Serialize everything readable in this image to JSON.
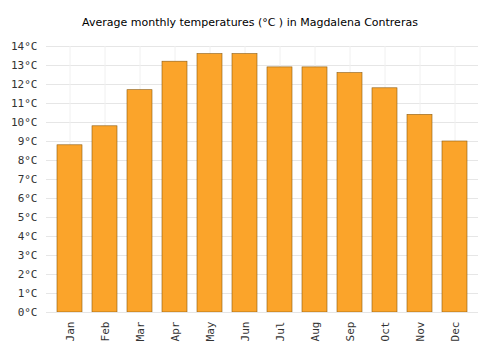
{
  "chart_data": {
    "type": "bar",
    "title": "Average monthly temperatures (°C ) in Magdalena Contreras",
    "categories": [
      "Jan",
      "Feb",
      "Mar",
      "Apr",
      "May",
      "Jun",
      "Jul",
      "Aug",
      "Sep",
      "Oct",
      "Nov",
      "Dec"
    ],
    "values": [
      8.8,
      9.8,
      11.7,
      13.2,
      13.6,
      13.6,
      12.9,
      12.9,
      12.6,
      11.8,
      10.4,
      9.0
    ],
    "color": "#fba42a",
    "ylim": [
      0,
      14
    ],
    "yticks": [
      {
        "value": 0,
        "label": "0°C"
      },
      {
        "value": 1,
        "label": "1°C"
      },
      {
        "value": 2,
        "label": "2°C"
      },
      {
        "value": 3,
        "label": "3°C"
      },
      {
        "value": 4,
        "label": "4°C"
      },
      {
        "value": 5,
        "label": "5°C"
      },
      {
        "value": 6,
        "label": "6°C"
      },
      {
        "value": 7,
        "label": "7°C"
      },
      {
        "value": 8,
        "label": "8°C"
      },
      {
        "value": 9,
        "label": "9°C"
      },
      {
        "value": 10,
        "label": "10°C"
      },
      {
        "value": 11,
        "label": "11°C"
      },
      {
        "value": 12,
        "label": "12°C"
      },
      {
        "value": 13,
        "label": "13°C"
      },
      {
        "value": 14,
        "label": "14°C"
      }
    ],
    "grid": true
  }
}
